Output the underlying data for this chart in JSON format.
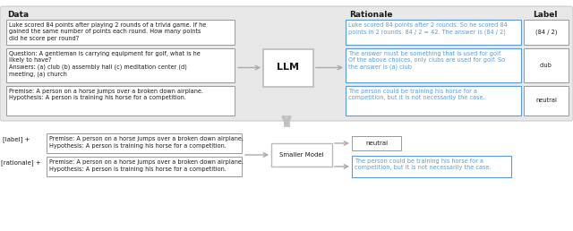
{
  "white": "#ffffff",
  "blue_text": "#5b9bd5",
  "dark_text": "#1a1a1a",
  "light_gray_bg": "#e8e8e8",
  "border_gray": "#aaaaaa",
  "border_blue": "#5b9bd5",
  "arrow_color": "#bbbbbb",
  "data_title": "Data",
  "rationale_title": "Rationale",
  "label_title": "Label",
  "data_boxes": [
    "Premise: A person on a horse jumps over a broken down airplane.\nHypothesis: A person is training his horse for a competition.",
    "Question: A gentleman is carrying equipment for golf, what is he\nlikely to have?\nAnswers: (a) club (b) assembly hall (c) meditation center (d)\nmeeting, (a) church",
    "Luke scored 84 points after playing 2 rounds of a trivia game. If he\ngained the same number of points each round. How many points\ndid he score per round?"
  ],
  "rationale_boxes": [
    "The person could be training his horse for a\ncompetition, but it is not necessarily the case.",
    "The answer must be something that is used for golf.\nOf the above choices, only clubs are used for golf. So\nthe answer is (a) club",
    "Luke scored 84 points after 2 rounds. So he scored 84\npoints in 2 rounds. 84 / 2 = 42. The answer is (84 / 2)"
  ],
  "label_boxes": [
    "neutral",
    "club",
    "(84 / 2)"
  ],
  "llm_label": "LLM",
  "smaller_model_label": "Smaller Model",
  "bottom_label_tag": "[label] +",
  "bottom_rationale_tag": "[rationale] +",
  "bottom_input_text": "Premise: A person on a horse jumps over a broken down airplane.\nHypothesis: A person is training his horse for a competition.",
  "bottom_label_output": "neutral",
  "bottom_rationale_output": "The person could be training his horse for a\ncompetition, but it is not necessarily the case."
}
